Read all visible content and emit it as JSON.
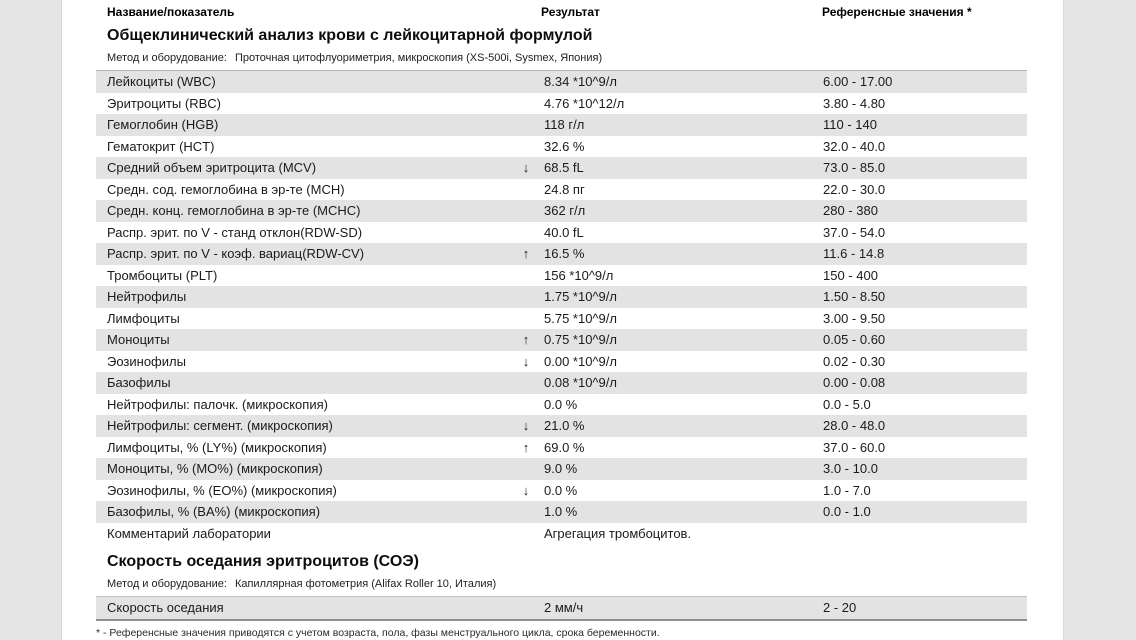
{
  "colors": {
    "row_shade": "#e3e3e3",
    "page_background": "#ffffff",
    "outer_background": "#e5e5e5",
    "table_top_rule": "#b3b3b3",
    "table_bottom_rule": "#8f8f8f"
  },
  "columns": {
    "name": "Название/показатель",
    "result": "Результат",
    "reference": "Референсные значения *"
  },
  "sections": [
    {
      "title": "Общеклинический анализ крови с лейкоцитарной формулой",
      "method_label": "Метод и оборудование:",
      "method_value": "Проточная цитофлуориметрия, микроскопия (XS-500i, Sysmex, Япония)",
      "rows": [
        {
          "name": "Лейкоциты (WBC)",
          "flag": "",
          "result": "8.34 *10^9/л",
          "reference": "6.00 - 17.00",
          "shaded": true
        },
        {
          "name": "Эритроциты (RBC)",
          "flag": "",
          "result": "4.76 *10^12/л",
          "reference": "3.80 - 4.80",
          "shaded": false
        },
        {
          "name": "Гемоглобин (HGB)",
          "flag": "",
          "result": "118 г/л",
          "reference": "110 - 140",
          "shaded": true
        },
        {
          "name": "Гематокрит (HCT)",
          "flag": "",
          "result": "32.6 %",
          "reference": "32.0 - 40.0",
          "shaded": false
        },
        {
          "name": "Средний объем эритроцита (MCV)",
          "flag": "low",
          "result": "68.5 fL",
          "reference": "73.0 - 85.0",
          "shaded": true
        },
        {
          "name": "Средн. сод. гемоглобина в эр-те (MCH)",
          "flag": "",
          "result": "24.8 пг",
          "reference": "22.0 - 30.0",
          "shaded": false
        },
        {
          "name": "Средн. конц. гемоглобина в эр-те (MCHC)",
          "flag": "",
          "result": "362 г/л",
          "reference": "280 - 380",
          "shaded": true
        },
        {
          "name": "Распр. эрит. по V - станд отклон(RDW-SD)",
          "flag": "",
          "result": "40.0 fL",
          "reference": "37.0 - 54.0",
          "shaded": false
        },
        {
          "name": "Распр. эрит. по V - коэф. вариац(RDW-CV)",
          "flag": "high",
          "result": "16.5 %",
          "reference": "11.6 - 14.8",
          "shaded": true
        },
        {
          "name": "Тромбоциты (PLT)",
          "flag": "",
          "result": "156 *10^9/л",
          "reference": "150 - 400",
          "shaded": false
        },
        {
          "name": "Нейтрофилы",
          "flag": "",
          "result": "1.75 *10^9/л",
          "reference": "1.50 - 8.50",
          "shaded": true
        },
        {
          "name": "Лимфоциты",
          "flag": "",
          "result": "5.75 *10^9/л",
          "reference": "3.00 - 9.50",
          "shaded": false
        },
        {
          "name": "Моноциты",
          "flag": "high",
          "result": "0.75 *10^9/л",
          "reference": "0.05 - 0.60",
          "shaded": true
        },
        {
          "name": "Эозинофилы",
          "flag": "low",
          "result": "0.00 *10^9/л",
          "reference": "0.02 - 0.30",
          "shaded": false
        },
        {
          "name": "Базофилы",
          "flag": "",
          "result": "0.08 *10^9/л",
          "reference": "0.00 - 0.08",
          "shaded": true
        },
        {
          "name": "Нейтрофилы: палочк. (микроскопия)",
          "flag": "",
          "result": "0.0 %",
          "reference": "0.0 - 5.0",
          "shaded": false
        },
        {
          "name": "Нейтрофилы: сегмент. (микроскопия)",
          "flag": "low",
          "result": "21.0 %",
          "reference": "28.0 - 48.0",
          "shaded": true
        },
        {
          "name": "Лимфоциты, % (LY%) (микроскопия)",
          "flag": "high",
          "result": "69.0 %",
          "reference": "37.0 - 60.0",
          "shaded": false
        },
        {
          "name": "Моноциты, % (MO%) (микроскопия)",
          "flag": "",
          "result": "9.0 %",
          "reference": "3.0 - 10.0",
          "shaded": true
        },
        {
          "name": "Эозинофилы, % (EO%) (микроскопия)",
          "flag": "low",
          "result": "0.0 %",
          "reference": "1.0 - 7.0",
          "shaded": false
        },
        {
          "name": "Базофилы, % (BA%) (микроскопия)",
          "flag": "",
          "result": "1.0 %",
          "reference": "0.0 - 1.0",
          "shaded": true
        },
        {
          "name": "Комментарий лаборатории",
          "flag": "",
          "result": "Агрегация тромбоцитов.",
          "reference": "",
          "shaded": false
        }
      ]
    },
    {
      "title": "Скорость оседания эритроцитов (СОЭ)",
      "method_label": "Метод и оборудование:",
      "method_value": "Капиллярная фотометрия (Alifax Roller 10, Италия)",
      "rows": [
        {
          "name": "Скорость оседания",
          "flag": "",
          "result": "2 мм/ч",
          "reference": "2 - 20",
          "shaded": true
        }
      ]
    }
  ],
  "footnote": "* - Референсные значения приводятся с учетом возраста, пола, фазы менструального цикла, срока беременности."
}
